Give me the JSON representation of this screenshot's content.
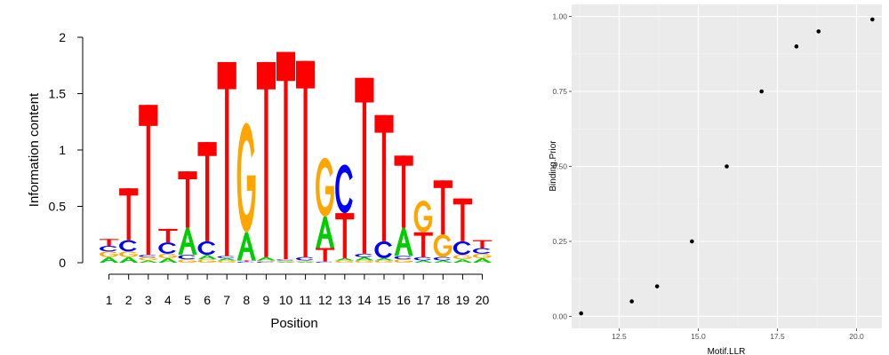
{
  "chart_data": [
    {
      "type": "sequence-logo",
      "xlabel": "Position",
      "ylabel": "Information content",
      "ylim": [
        0,
        2
      ],
      "yticks": [
        "0",
        "0.5",
        "1",
        "1.5",
        "2"
      ],
      "positions": [
        "1",
        "2",
        "3",
        "4",
        "5",
        "6",
        "7",
        "8",
        "9",
        "10",
        "11",
        "12",
        "13",
        "14",
        "15",
        "16",
        "17",
        "18",
        "19",
        "20"
      ],
      "colors": {
        "A": "#00cc00",
        "C": "#0000ff",
        "G": "#ffa500",
        "T": "#ff0000"
      },
      "letters": [
        [
          [
            "A",
            0.05
          ],
          [
            "G",
            0.05
          ],
          [
            "C",
            0.05
          ],
          [
            "T",
            0.06
          ]
        ],
        [
          [
            "A",
            0.05
          ],
          [
            "G",
            0.05
          ],
          [
            "C",
            0.1
          ],
          [
            "T",
            0.46
          ]
        ],
        [
          [
            "A",
            0.02
          ],
          [
            "G",
            0.03
          ],
          [
            "C",
            0.02
          ],
          [
            "T",
            1.33
          ]
        ],
        [
          [
            "A",
            0.04
          ],
          [
            "G",
            0.04
          ],
          [
            "C",
            0.1
          ],
          [
            "T",
            0.12
          ]
        ],
        [
          [
            "G",
            0.03
          ],
          [
            "C",
            0.04
          ],
          [
            "A",
            0.24
          ],
          [
            "T",
            0.5
          ]
        ],
        [
          [
            "G",
            0.03
          ],
          [
            "A",
            0.04
          ],
          [
            "C",
            0.12
          ],
          [
            "T",
            0.88
          ]
        ],
        [
          [
            "G",
            0.02
          ],
          [
            "A",
            0.02
          ],
          [
            "C",
            0.02
          ],
          [
            "T",
            1.72
          ]
        ],
        [
          [
            "C",
            0.01
          ],
          [
            "T",
            0.01
          ],
          [
            "A",
            0.25
          ],
          [
            "G",
            0.97
          ]
        ],
        [
          [
            "C",
            0.01
          ],
          [
            "G",
            0.01
          ],
          [
            "A",
            0.03
          ],
          [
            "T",
            1.73
          ]
        ],
        [
          [
            "A",
            0.01
          ],
          [
            "G",
            0.01
          ],
          [
            "C",
            0.01
          ],
          [
            "T",
            1.84
          ]
        ],
        [
          [
            "A",
            0.01
          ],
          [
            "G",
            0.01
          ],
          [
            "C",
            0.03
          ],
          [
            "T",
            1.74
          ]
        ],
        [
          [
            "C",
            0.01
          ],
          [
            "T",
            0.12
          ],
          [
            "A",
            0.28
          ],
          [
            "G",
            0.52
          ]
        ],
        [
          [
            "G",
            0.02
          ],
          [
            "A",
            0.02
          ],
          [
            "T",
            0.4
          ],
          [
            "C",
            0.43
          ]
        ],
        [
          [
            "G",
            0.02
          ],
          [
            "A",
            0.03
          ],
          [
            "C",
            0.03
          ],
          [
            "T",
            1.56
          ]
        ],
        [
          [
            "G",
            0.02
          ],
          [
            "A",
            0.02
          ],
          [
            "C",
            0.15
          ],
          [
            "T",
            1.12
          ]
        ],
        [
          [
            "G",
            0.03
          ],
          [
            "C",
            0.03
          ],
          [
            "A",
            0.25
          ],
          [
            "T",
            0.64
          ]
        ],
        [
          [
            "A",
            0.02
          ],
          [
            "C",
            0.03
          ],
          [
            "T",
            0.22
          ],
          [
            "G",
            0.28
          ]
        ],
        [
          [
            "A",
            0.02
          ],
          [
            "C",
            0.03
          ],
          [
            "G",
            0.2
          ],
          [
            "T",
            0.48
          ]
        ],
        [
          [
            "A",
            0.03
          ],
          [
            "G",
            0.04
          ],
          [
            "C",
            0.12
          ],
          [
            "T",
            0.38
          ]
        ],
        [
          [
            "A",
            0.04
          ],
          [
            "G",
            0.04
          ],
          [
            "C",
            0.05
          ],
          [
            "T",
            0.07
          ]
        ]
      ]
    },
    {
      "type": "scatter",
      "xlabel": "Motif.LLR",
      "ylabel": "Binding.Prior",
      "xlim": [
        11.0,
        20.8
      ],
      "ylim": [
        -0.04,
        1.04
      ],
      "xticks": [
        12.5,
        15.0,
        17.5,
        20.0
      ],
      "xtick_labels": [
        "12.5",
        "15.0",
        "17.5",
        "20.0"
      ],
      "yticks": [
        0,
        0.25,
        0.5,
        0.75,
        1.0
      ],
      "ytick_labels": [
        "0.00",
        "0.25",
        "0.50",
        "0.75",
        "1.00"
      ],
      "grid": true,
      "background": "#ebebeb",
      "points": [
        [
          11.3,
          0.01
        ],
        [
          12.9,
          0.05
        ],
        [
          13.7,
          0.1
        ],
        [
          14.8,
          0.25
        ],
        [
          15.9,
          0.5
        ],
        [
          17.0,
          0.75
        ],
        [
          18.1,
          0.9
        ],
        [
          18.8,
          0.95
        ],
        [
          20.5,
          0.99
        ]
      ]
    }
  ]
}
